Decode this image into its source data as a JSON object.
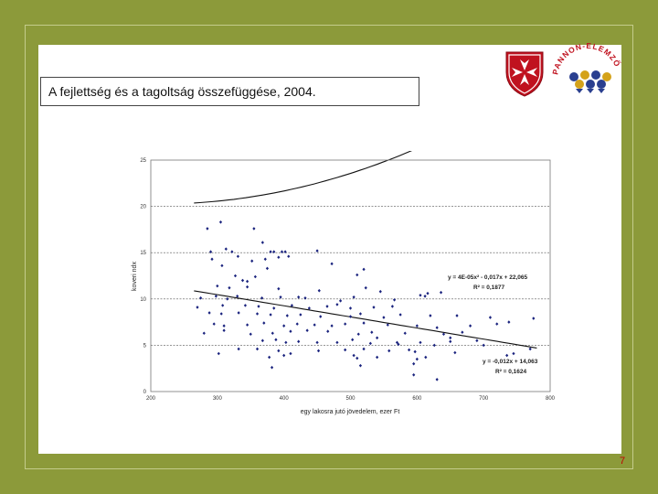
{
  "slide": {
    "title": "A fejlettség és a tagoltság összefüggése, 2004.",
    "page_number": "7",
    "brand_text": "PANNON-ELEMZŐ"
  },
  "colors": {
    "background": "#8c9a3a",
    "panel": "#ffffff",
    "points": "#1a237e",
    "trend": "#111111",
    "page_number": "#c00000",
    "shield_red": "#c0121f"
  },
  "icons": [
    "maltese-cross-shield-logo",
    "pannon-elemzo-logo"
  ],
  "chart_data": {
    "type": "scatter",
    "xlabel": "egy lakosra jutó jövedelem, ezer Ft",
    "ylabel": "koveri ndx",
    "xlim": [
      200,
      800
    ],
    "ylim": [
      0,
      25
    ],
    "xticks": [
      "200",
      "300",
      "400",
      "500",
      "600",
      "700",
      "800"
    ],
    "yticks": [
      "0",
      "5",
      "10",
      "15",
      "20",
      "25"
    ],
    "grid": "horizontal dashed",
    "points": [
      [
        285,
        17.6
      ],
      [
        305,
        18.3
      ],
      [
        355,
        17.6
      ],
      [
        368,
        16.1
      ],
      [
        290,
        15.1
      ],
      [
        313,
        15.4
      ],
      [
        322,
        15.1
      ],
      [
        380,
        15.1
      ],
      [
        385,
        15.1
      ],
      [
        397,
        15.1
      ],
      [
        402,
        15.1
      ],
      [
        450,
        15.2
      ],
      [
        292,
        14.3
      ],
      [
        331,
        14.6
      ],
      [
        352,
        14.1
      ],
      [
        372,
        14.3
      ],
      [
        392,
        14.5
      ],
      [
        407,
        14.6
      ],
      [
        472,
        13.8
      ],
      [
        520,
        13.2
      ],
      [
        307,
        13.6
      ],
      [
        327,
        12.5
      ],
      [
        357,
        12.4
      ],
      [
        375,
        13.3
      ],
      [
        510,
        12.6
      ],
      [
        345,
        11.9
      ],
      [
        338,
        12.0
      ],
      [
        300,
        11.4
      ],
      [
        318,
        11.2
      ],
      [
        345,
        11.3
      ],
      [
        392,
        11.1
      ],
      [
        453,
        10.9
      ],
      [
        523,
        11.2
      ],
      [
        545,
        10.8
      ],
      [
        605,
        10.4
      ],
      [
        612,
        10.3
      ],
      [
        616,
        10.6
      ],
      [
        636,
        10.7
      ],
      [
        275,
        10.1
      ],
      [
        298,
        10.3
      ],
      [
        315,
        10.0
      ],
      [
        330,
        10.3
      ],
      [
        367,
        10.1
      ],
      [
        395,
        10.2
      ],
      [
        422,
        10.2
      ],
      [
        432,
        10.1
      ],
      [
        485,
        9.8
      ],
      [
        505,
        10.2
      ],
      [
        566,
        9.9
      ],
      [
        270,
        9.1
      ],
      [
        308,
        9.3
      ],
      [
        342,
        9.3
      ],
      [
        362,
        9.2
      ],
      [
        385,
        9.0
      ],
      [
        412,
        9.3
      ],
      [
        438,
        9.0
      ],
      [
        465,
        9.2
      ],
      [
        480,
        9.4
      ],
      [
        500,
        9.0
      ],
      [
        535,
        9.1
      ],
      [
        563,
        9.2
      ],
      [
        288,
        8.5
      ],
      [
        306,
        8.4
      ],
      [
        332,
        8.5
      ],
      [
        360,
        8.4
      ],
      [
        380,
        8.3
      ],
      [
        405,
        8.2
      ],
      [
        425,
        8.3
      ],
      [
        455,
        8.1
      ],
      [
        500,
        8.1
      ],
      [
        515,
        8.4
      ],
      [
        550,
        8.0
      ],
      [
        575,
        8.3
      ],
      [
        620,
        8.2
      ],
      [
        660,
        8.2
      ],
      [
        710,
        8.0
      ],
      [
        775,
        7.9
      ],
      [
        295,
        7.3
      ],
      [
        310,
        7.1
      ],
      [
        345,
        7.2
      ],
      [
        370,
        7.4
      ],
      [
        400,
        7.1
      ],
      [
        420,
        7.3
      ],
      [
        446,
        7.2
      ],
      [
        472,
        7.1
      ],
      [
        492,
        7.3
      ],
      [
        520,
        7.4
      ],
      [
        556,
        7.2
      ],
      [
        600,
        7.1
      ],
      [
        630,
        6.9
      ],
      [
        680,
        7.1
      ],
      [
        720,
        7.3
      ],
      [
        738,
        7.5
      ],
      [
        280,
        6.3
      ],
      [
        310,
        6.6
      ],
      [
        350,
        6.2
      ],
      [
        383,
        6.3
      ],
      [
        410,
        6.5
      ],
      [
        435,
        6.6
      ],
      [
        466,
        6.5
      ],
      [
        512,
        6.2
      ],
      [
        532,
        6.4
      ],
      [
        582,
        6.3
      ],
      [
        640,
        6.2
      ],
      [
        668,
        6.4
      ],
      [
        690,
        5.5
      ],
      [
        368,
        5.5
      ],
      [
        388,
        5.6
      ],
      [
        403,
        5.3
      ],
      [
        422,
        5.4
      ],
      [
        450,
        5.3
      ],
      [
        480,
        5.3
      ],
      [
        503,
        5.6
      ],
      [
        530,
        5.2
      ],
      [
        570,
        5.3
      ],
      [
        572,
        5.1
      ],
      [
        605,
        5.3
      ],
      [
        650,
        5.4
      ],
      [
        700,
        5.0
      ],
      [
        332,
        4.6
      ],
      [
        360,
        4.6
      ],
      [
        392,
        4.4
      ],
      [
        452,
        4.4
      ],
      [
        492,
        4.5
      ],
      [
        520,
        4.6
      ],
      [
        558,
        4.4
      ],
      [
        597,
        4.3
      ],
      [
        657,
        4.2
      ],
      [
        770,
        4.6
      ],
      [
        302,
        4.1
      ],
      [
        410,
        4.1
      ],
      [
        378,
        3.7
      ],
      [
        400,
        3.9
      ],
      [
        505,
        3.9
      ],
      [
        510,
        3.6
      ],
      [
        540,
        3.7
      ],
      [
        600,
        3.5
      ],
      [
        613,
        3.7
      ],
      [
        735,
        3.9
      ],
      [
        745,
        4.1
      ],
      [
        382,
        2.6
      ],
      [
        515,
        2.8
      ],
      [
        595,
        1.8
      ],
      [
        630,
        1.3
      ],
      [
        595,
        3.0
      ],
      [
        540,
        5.8
      ],
      [
        588,
        4.5
      ],
      [
        626,
        5.0
      ],
      [
        650,
        5.8
      ]
    ],
    "trendlines": [
      {
        "type": "polynomial",
        "equation": "y = 4E-05x² - 0,017x + 22,065",
        "r2": "R² = 0,1877",
        "coef": [
          4e-05,
          -0.017,
          22.065
        ]
      },
      {
        "type": "linear",
        "equation": "y = -0,012x + 14,063",
        "r2": "R² = 0,1624",
        "coef": [
          0,
          -0.012,
          14.063
        ]
      }
    ],
    "x_range_trend": [
      265,
      780
    ]
  }
}
